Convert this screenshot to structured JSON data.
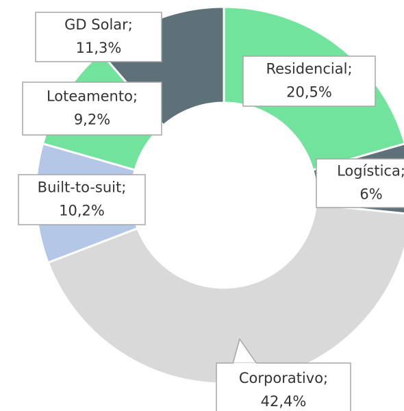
{
  "chart_data": {
    "type": "donut",
    "values": [
      20.5,
      6,
      42.4,
      10.2,
      9.2,
      11.3
    ],
    "value_labels": [
      [
        "Residencial;",
        "20,5%"
      ],
      [
        "Logística;",
        "6%"
      ],
      [
        "Corporativo;",
        "42,4%"
      ],
      [
        "Built-to-suit;",
        "10,2%"
      ],
      [
        "Loteamento;",
        "9,2%"
      ],
      [
        "GD Solar;",
        "11,3%"
      ]
    ],
    "colors": [
      "#72e39c",
      "#5f7178",
      "#d9d9d9",
      "#b4c7e7",
      "#72e39c",
      "#5f7178"
    ]
  }
}
